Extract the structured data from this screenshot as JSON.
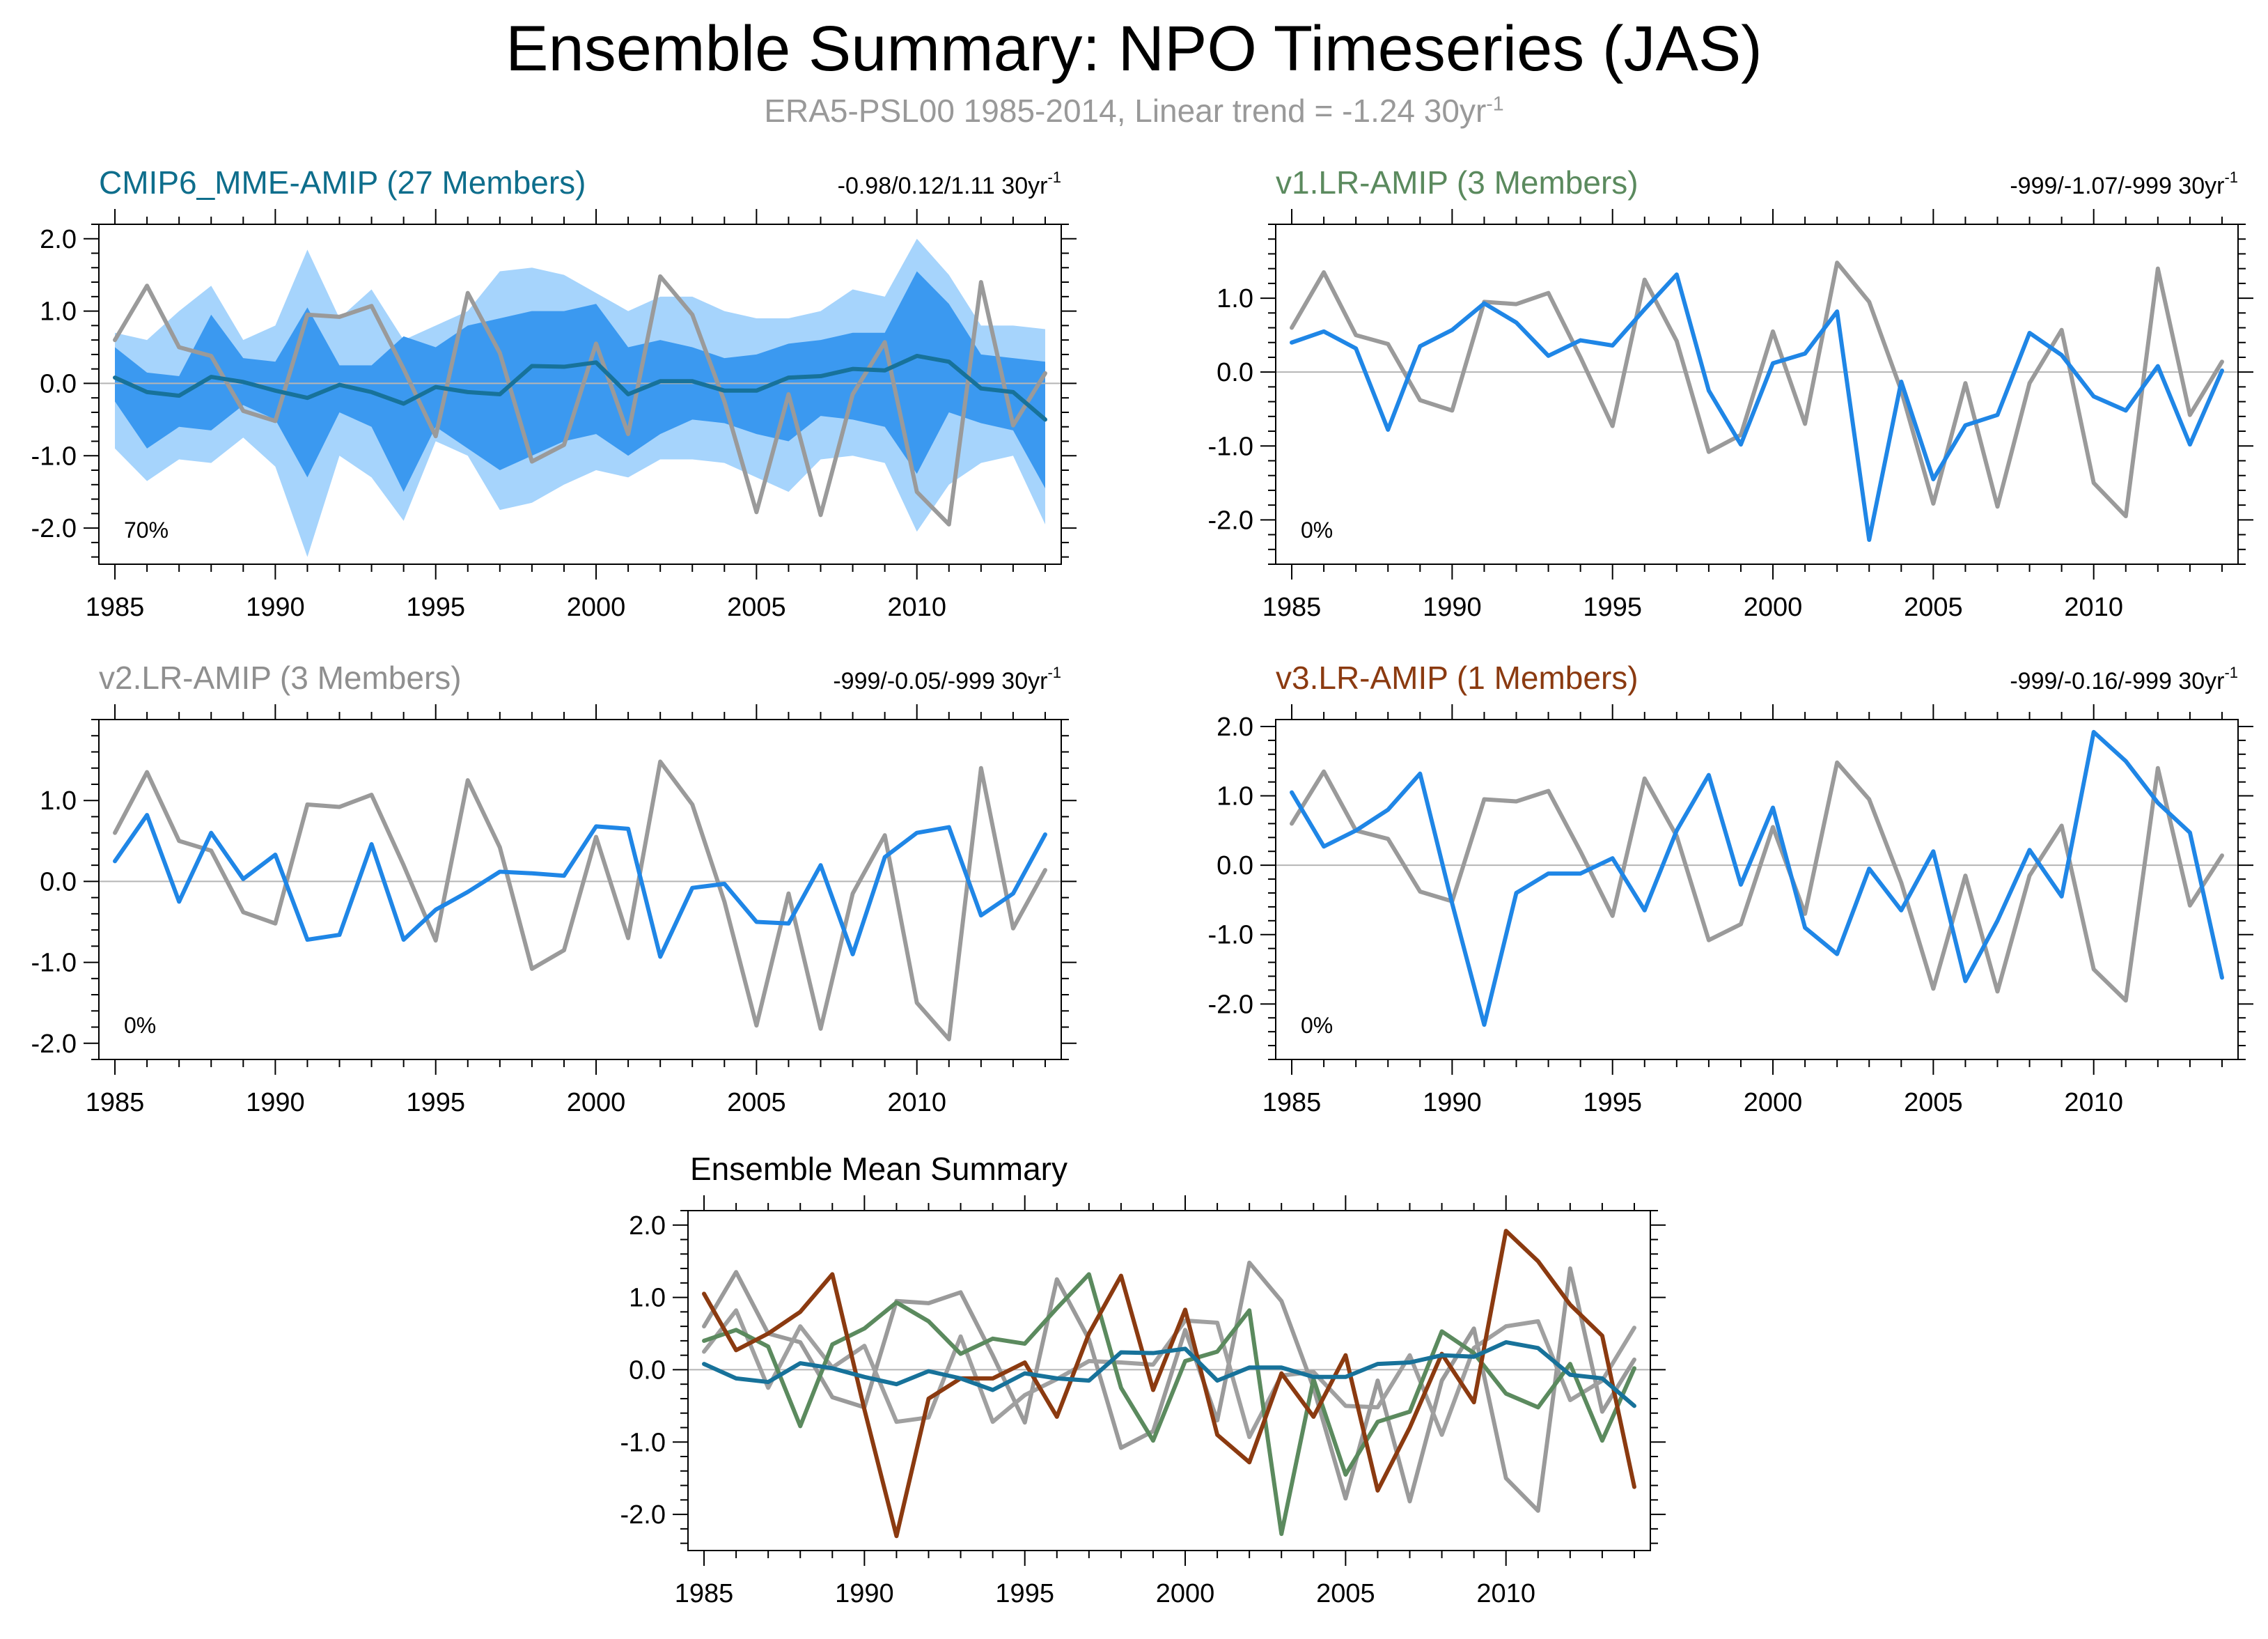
{
  "title": "Ensemble Summary: NPO Timeseries (JAS)",
  "subtitle": {
    "text": "ERA5-PSL00 1985-2014, Linear trend = -1.24 30yr",
    "exponent": "-1"
  },
  "chart_data": [
    {
      "id": "cmip6",
      "type": "line",
      "title": "CMIP6_MME-AMIP (27 Members)",
      "title_color": "#0e6e8c",
      "stat": {
        "text": "-0.98/0.12/1.11 30yr",
        "exponent": "-1"
      },
      "pct_label": "70%",
      "x": [
        1985,
        1986,
        1987,
        1988,
        1989,
        1990,
        1991,
        1992,
        1993,
        1994,
        1995,
        1996,
        1997,
        1998,
        1999,
        2000,
        2001,
        2002,
        2003,
        2004,
        2005,
        2006,
        2007,
        2008,
        2009,
        2010,
        2011,
        2012,
        2013,
        2014
      ],
      "xticks": [
        1985,
        1990,
        1995,
        2000,
        2005,
        2010
      ],
      "ylim": [
        -2.5,
        2.2
      ],
      "yticks": [
        -2,
        -1,
        0,
        1,
        2
      ],
      "yticklabels": [
        "-2.0",
        "-1.0",
        "0.0",
        "1.0",
        "2.0"
      ],
      "bands": [
        {
          "name": "outer spread",
          "color": "#a6d4fc",
          "upper": [
            0.7,
            0.6,
            1.0,
            1.35,
            0.6,
            0.8,
            1.85,
            0.9,
            1.3,
            0.6,
            0.8,
            1.0,
            1.55,
            1.6,
            1.5,
            1.25,
            1.0,
            1.2,
            1.2,
            1.0,
            0.9,
            0.9,
            1.0,
            1.3,
            1.2,
            2.0,
            1.5,
            0.8,
            0.8,
            0.75
          ],
          "lower": [
            -0.9,
            -1.35,
            -1.05,
            -1.1,
            -0.75,
            -1.15,
            -2.4,
            -1.0,
            -1.3,
            -1.9,
            -0.8,
            -1.0,
            -1.75,
            -1.65,
            -1.4,
            -1.2,
            -1.3,
            -1.05,
            -1.05,
            -1.1,
            -1.3,
            -1.5,
            -1.05,
            -1.0,
            -1.1,
            -2.05,
            -1.4,
            -1.1,
            -1.0,
            -1.95
          ]
        },
        {
          "name": "inner spread",
          "color": "#3b99f0",
          "upper": [
            0.5,
            0.15,
            0.1,
            0.95,
            0.35,
            0.3,
            1.05,
            0.25,
            0.25,
            0.65,
            0.5,
            0.8,
            0.9,
            1.0,
            1.0,
            1.1,
            0.5,
            0.6,
            0.5,
            0.35,
            0.4,
            0.55,
            0.6,
            0.7,
            0.7,
            1.55,
            1.1,
            0.4,
            0.35,
            0.3
          ],
          "lower": [
            -0.25,
            -0.9,
            -0.6,
            -0.65,
            -0.3,
            -0.5,
            -1.3,
            -0.4,
            -0.6,
            -1.5,
            -0.6,
            -0.9,
            -1.2,
            -1.0,
            -0.8,
            -0.7,
            -1.0,
            -0.7,
            -0.5,
            -0.55,
            -0.7,
            -0.8,
            -0.45,
            -0.5,
            -0.6,
            -1.25,
            -0.4,
            -0.55,
            -0.65,
            -1.45
          ]
        }
      ],
      "series": [
        {
          "name": "ERA5-PSL00",
          "color": "#9a9a9a",
          "values": [
            0.6,
            1.35,
            0.5,
            0.38,
            -0.38,
            -0.52,
            0.95,
            0.92,
            1.07,
            0.2,
            -0.73,
            1.25,
            0.42,
            -1.08,
            -0.85,
            0.55,
            -0.7,
            1.48,
            0.95,
            -0.25,
            -1.78,
            -0.15,
            -1.82,
            -0.15,
            0.57,
            -1.5,
            -1.95,
            1.4,
            -0.58,
            0.14
          ]
        },
        {
          "name": "CMIP6_MME-AMIP mean",
          "color": "#17729a",
          "values": [
            0.08,
            -0.12,
            -0.17,
            0.09,
            0.02,
            -0.1,
            -0.2,
            -0.02,
            -0.12,
            -0.28,
            -0.05,
            -0.12,
            -0.15,
            0.24,
            0.23,
            0.29,
            -0.15,
            0.03,
            0.03,
            -0.1,
            -0.1,
            0.08,
            0.1,
            0.2,
            0.18,
            0.38,
            0.3,
            -0.07,
            -0.12,
            -0.5
          ]
        }
      ]
    },
    {
      "id": "v1",
      "type": "line",
      "title": "v1.LR-AMIP (3 Members)",
      "title_color": "#5b8a5e",
      "stat": {
        "text": "-999/-1.07/-999 30yr",
        "exponent": "-1"
      },
      "pct_label": "0%",
      "x": [
        1985,
        1986,
        1987,
        1988,
        1989,
        1990,
        1991,
        1992,
        1993,
        1994,
        1995,
        1996,
        1997,
        1998,
        1999,
        2000,
        2001,
        2002,
        2003,
        2004,
        2005,
        2006,
        2007,
        2008,
        2009,
        2010,
        2011,
        2012,
        2013,
        2014
      ],
      "xticks": [
        1985,
        1990,
        1995,
        2000,
        2005,
        2010
      ],
      "ylim": [
        -2.6,
        2.0
      ],
      "yticks": [
        -2,
        -1,
        0,
        1
      ],
      "yticklabels": [
        "-2.0",
        "-1.0",
        "0.0",
        "1.0"
      ],
      "series": [
        {
          "name": "ERA5-PSL00",
          "color": "#9a9a9a",
          "values": [
            0.6,
            1.35,
            0.5,
            0.38,
            -0.38,
            -0.52,
            0.95,
            0.92,
            1.07,
            0.2,
            -0.73,
            1.25,
            0.42,
            -1.08,
            -0.85,
            0.55,
            -0.7,
            1.48,
            0.95,
            -0.25,
            -1.78,
            -0.15,
            -1.82,
            -0.15,
            0.57,
            -1.5,
            -1.95,
            1.4,
            -0.58,
            0.14
          ]
        },
        {
          "name": "v1.LR-AMIP",
          "color": "#1f86e6",
          "values": [
            0.4,
            0.55,
            0.32,
            -0.78,
            0.35,
            0.57,
            0.93,
            0.67,
            0.22,
            0.43,
            0.36,
            0.85,
            1.32,
            -0.25,
            -0.98,
            0.12,
            0.25,
            0.82,
            -2.27,
            -0.13,
            -1.45,
            -0.72,
            -0.58,
            0.53,
            0.23,
            -0.33,
            -0.52,
            0.08,
            -0.98,
            0.02
          ]
        }
      ]
    },
    {
      "id": "v2",
      "type": "line",
      "title": "v2.LR-AMIP (3 Members)",
      "title_color": "#8f8f8f",
      "stat": {
        "text": "-999/-0.05/-999 30yr",
        "exponent": "-1"
      },
      "pct_label": "0%",
      "x": [
        1985,
        1986,
        1987,
        1988,
        1989,
        1990,
        1991,
        1992,
        1993,
        1994,
        1995,
        1996,
        1997,
        1998,
        1999,
        2000,
        2001,
        2002,
        2003,
        2004,
        2005,
        2006,
        2007,
        2008,
        2009,
        2010,
        2011,
        2012,
        2013,
        2014
      ],
      "xticks": [
        1985,
        1990,
        1995,
        2000,
        2005,
        2010
      ],
      "ylim": [
        -2.2,
        2.0
      ],
      "yticks": [
        -2,
        -1,
        0,
        1
      ],
      "yticklabels": [
        "-2.0",
        "-1.0",
        "0.0",
        "1.0"
      ],
      "series": [
        {
          "name": "ERA5-PSL00",
          "color": "#9a9a9a",
          "values": [
            0.6,
            1.35,
            0.5,
            0.38,
            -0.38,
            -0.52,
            0.95,
            0.92,
            1.07,
            0.2,
            -0.73,
            1.25,
            0.42,
            -1.08,
            -0.85,
            0.55,
            -0.7,
            1.48,
            0.95,
            -0.25,
            -1.78,
            -0.15,
            -1.82,
            -0.15,
            0.57,
            -1.5,
            -1.95,
            1.4,
            -0.58,
            0.14
          ]
        },
        {
          "name": "v2.LR-AMIP",
          "color": "#1f86e6",
          "values": [
            0.25,
            0.82,
            -0.25,
            0.6,
            0.03,
            0.33,
            -0.72,
            -0.66,
            0.46,
            -0.72,
            -0.35,
            -0.13,
            0.12,
            0.1,
            0.07,
            0.68,
            0.65,
            -0.93,
            -0.08,
            -0.03,
            -0.5,
            -0.52,
            0.2,
            -0.9,
            0.3,
            0.6,
            0.67,
            -0.42,
            -0.15,
            0.58
          ]
        }
      ]
    },
    {
      "id": "v3",
      "type": "line",
      "title": "v3.LR-AMIP (1 Members)",
      "title_color": "#8b3a10",
      "stat": {
        "text": "-999/-0.16/-999 30yr",
        "exponent": "-1"
      },
      "pct_label": "0%",
      "x": [
        1985,
        1986,
        1987,
        1988,
        1989,
        1990,
        1991,
        1992,
        1993,
        1994,
        1995,
        1996,
        1997,
        1998,
        1999,
        2000,
        2001,
        2002,
        2003,
        2004,
        2005,
        2006,
        2007,
        2008,
        2009,
        2010,
        2011,
        2012,
        2013,
        2014
      ],
      "xticks": [
        1985,
        1990,
        1995,
        2000,
        2005,
        2010
      ],
      "ylim": [
        -2.8,
        2.1
      ],
      "yticks": [
        -2,
        -1,
        0,
        1,
        2
      ],
      "yticklabels": [
        "-2.0",
        "-1.0",
        "0.0",
        "1.0",
        "2.0"
      ],
      "series": [
        {
          "name": "ERA5-PSL00",
          "color": "#9a9a9a",
          "values": [
            0.6,
            1.35,
            0.5,
            0.38,
            -0.38,
            -0.52,
            0.95,
            0.92,
            1.07,
            0.2,
            -0.73,
            1.25,
            0.42,
            -1.08,
            -0.85,
            0.55,
            -0.7,
            1.48,
            0.95,
            -0.25,
            -1.78,
            -0.15,
            -1.82,
            -0.15,
            0.57,
            -1.5,
            -1.95,
            1.4,
            -0.58,
            0.14
          ]
        },
        {
          "name": "v3.LR-AMIP",
          "color": "#1f86e6",
          "values": [
            1.05,
            0.27,
            0.5,
            0.8,
            1.32,
            -0.55,
            -2.3,
            -0.4,
            -0.12,
            -0.12,
            0.1,
            -0.65,
            0.5,
            1.3,
            -0.28,
            0.83,
            -0.9,
            -1.28,
            -0.05,
            -0.65,
            0.2,
            -1.67,
            -0.8,
            0.22,
            -0.45,
            1.92,
            1.5,
            0.9,
            0.47,
            -1.62
          ]
        }
      ]
    },
    {
      "id": "mean",
      "type": "line",
      "title": "Ensemble Mean Summary",
      "title_color": "#000000",
      "x": [
        1985,
        1986,
        1987,
        1988,
        1989,
        1990,
        1991,
        1992,
        1993,
        1994,
        1995,
        1996,
        1997,
        1998,
        1999,
        2000,
        2001,
        2002,
        2003,
        2004,
        2005,
        2006,
        2007,
        2008,
        2009,
        2010,
        2011,
        2012,
        2013,
        2014
      ],
      "xticks": [
        1985,
        1990,
        1995,
        2000,
        2005,
        2010
      ],
      "ylim": [
        -2.5,
        2.2
      ],
      "yticks": [
        -2,
        -1,
        0,
        1,
        2
      ],
      "yticklabels": [
        "-2.0",
        "-1.0",
        "0.0",
        "1.0",
        "2.0"
      ],
      "series": [
        {
          "name": "ERA5-PSL00",
          "color": "#9a9a9a",
          "values": [
            0.6,
            1.35,
            0.5,
            0.38,
            -0.38,
            -0.52,
            0.95,
            0.92,
            1.07,
            0.2,
            -0.73,
            1.25,
            0.42,
            -1.08,
            -0.85,
            0.55,
            -0.7,
            1.48,
            0.95,
            -0.25,
            -1.78,
            -0.15,
            -1.82,
            -0.15,
            0.57,
            -1.5,
            -1.95,
            1.4,
            -0.58,
            0.14
          ]
        },
        {
          "name": "v2.LR-AMIP",
          "color": "#a0a0a0",
          "values": [
            0.25,
            0.82,
            -0.25,
            0.6,
            0.03,
            0.33,
            -0.72,
            -0.66,
            0.46,
            -0.72,
            -0.35,
            -0.13,
            0.12,
            0.1,
            0.07,
            0.68,
            0.65,
            -0.93,
            -0.08,
            -0.03,
            -0.5,
            -0.52,
            0.2,
            -0.9,
            0.3,
            0.6,
            0.67,
            -0.42,
            -0.15,
            0.58
          ]
        },
        {
          "name": "v1.LR-AMIP",
          "color": "#5b8a5e",
          "values": [
            0.4,
            0.55,
            0.32,
            -0.78,
            0.35,
            0.57,
            0.93,
            0.67,
            0.22,
            0.43,
            0.36,
            0.85,
            1.32,
            -0.25,
            -0.98,
            0.12,
            0.25,
            0.82,
            -2.27,
            -0.13,
            -1.45,
            -0.72,
            -0.58,
            0.53,
            0.23,
            -0.33,
            -0.52,
            0.08,
            -0.98,
            0.02
          ]
        },
        {
          "name": "v3.LR-AMIP",
          "color": "#8b3a10",
          "values": [
            1.05,
            0.27,
            0.5,
            0.8,
            1.32,
            -0.55,
            -2.3,
            -0.4,
            -0.12,
            -0.12,
            0.1,
            -0.65,
            0.5,
            1.3,
            -0.28,
            0.83,
            -0.9,
            -1.28,
            -0.05,
            -0.65,
            0.2,
            -1.67,
            -0.8,
            0.22,
            -0.45,
            1.92,
            1.5,
            0.9,
            0.47,
            -1.62
          ]
        },
        {
          "name": "CMIP6_MME-AMIP",
          "color": "#17729a",
          "values": [
            0.08,
            -0.12,
            -0.17,
            0.09,
            0.02,
            -0.1,
            -0.2,
            -0.02,
            -0.12,
            -0.28,
            -0.05,
            -0.12,
            -0.15,
            0.24,
            0.23,
            0.29,
            -0.15,
            0.03,
            0.03,
            -0.1,
            -0.1,
            0.08,
            0.1,
            0.2,
            0.18,
            0.38,
            0.3,
            -0.07,
            -0.12,
            -0.5
          ]
        }
      ]
    }
  ]
}
